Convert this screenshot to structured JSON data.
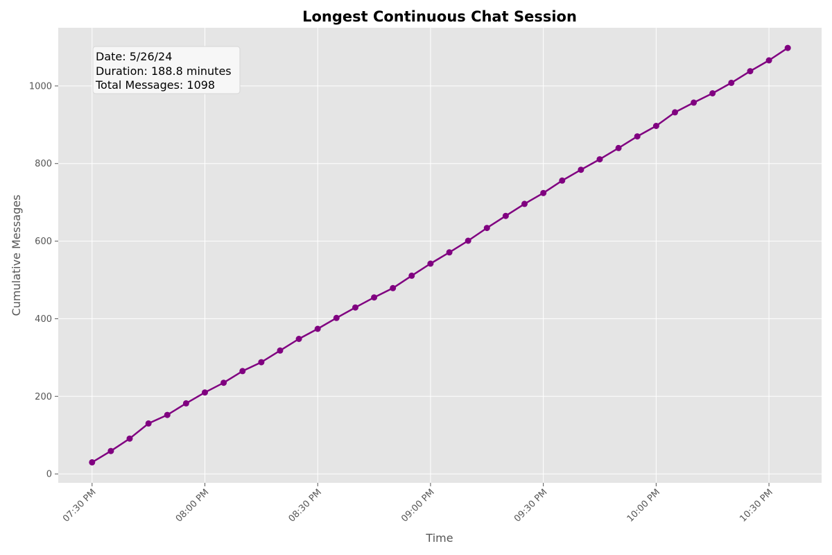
{
  "chart_data": {
    "type": "line",
    "title": "Longest Continuous Chat Session",
    "xlabel": "Time",
    "ylabel": "Cumulative Messages",
    "x_tick_labels": [
      "07:30 PM",
      "08:00 PM",
      "08:30 PM",
      "09:00 PM",
      "09:30 PM",
      "10:00 PM",
      "10:30 PM"
    ],
    "y_ticks": [
      0,
      200,
      400,
      600,
      800,
      1000
    ],
    "x_range": [
      "7:21 PM",
      "10:44 PM"
    ],
    "ylim": [
      -23,
      1150
    ],
    "grid": true,
    "colors": {
      "line": "#800080",
      "background": "#e5e5e5",
      "grid": "#ffffff"
    },
    "info_box": {
      "date": "Date: 5/26/24",
      "duration": "Duration: 188.8 minutes",
      "total": "Total Messages: 1098"
    },
    "x": [
      "7:30 PM",
      "7:35 PM",
      "7:40 PM",
      "7:45 PM",
      "7:50 PM",
      "7:55 PM",
      "8:00 PM",
      "8:05 PM",
      "8:10 PM",
      "8:15 PM",
      "8:20 PM",
      "8:25 PM",
      "8:30 PM",
      "8:35 PM",
      "8:40 PM",
      "8:45 PM",
      "8:50 PM",
      "8:55 PM",
      "9:00 PM",
      "9:05 PM",
      "9:10 PM",
      "9:15 PM",
      "9:20 PM",
      "9:25 PM",
      "9:30 PM",
      "9:35 PM",
      "9:40 PM",
      "9:45 PM",
      "9:50 PM",
      "9:55 PM",
      "10:00 PM",
      "10:05 PM",
      "10:10 PM",
      "10:15 PM",
      "10:20 PM",
      "10:25 PM",
      "10:30 PM",
      "10:35 PM"
    ],
    "values": [
      30,
      59,
      91,
      130,
      152,
      182,
      210,
      235,
      265,
      288,
      318,
      348,
      374,
      402,
      429,
      455,
      479,
      511,
      542,
      571,
      601,
      634,
      665,
      696,
      724,
      756,
      784,
      811,
      840,
      870,
      897,
      932,
      957,
      981,
      1008,
      1038,
      1066,
      1098
    ]
  }
}
